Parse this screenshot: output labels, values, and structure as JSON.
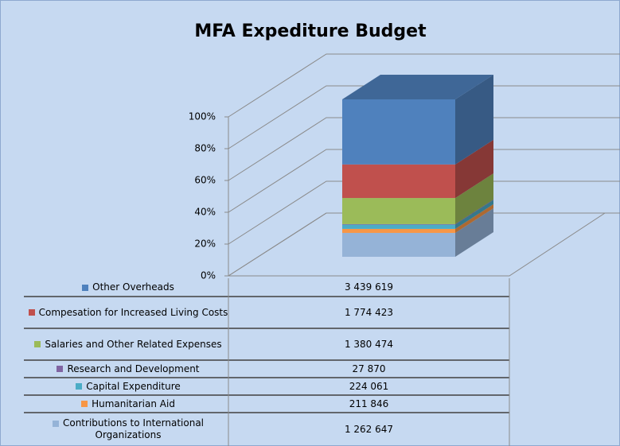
{
  "chart_data": {
    "type": "bar3d_stacked_percent",
    "title": "MFA Expediture Budget",
    "categories": [
      null
    ],
    "ylim": [
      0,
      100
    ],
    "yticks": [
      {
        "value": 0,
        "label": "0%"
      },
      {
        "value": 20,
        "label": "20%"
      },
      {
        "value": 40,
        "label": "40%"
      },
      {
        "value": 60,
        "label": "60%"
      },
      {
        "value": 80,
        "label": "80%"
      },
      {
        "value": 100,
        "label": "100%"
      }
    ],
    "grid": true,
    "series": [
      {
        "name": "Other Overheads",
        "color": "#4f81bd",
        "values": [
          3439619
        ],
        "value_labels": [
          "3 439 619"
        ]
      },
      {
        "name": "Compesation for Increased Living Costs",
        "color": "#c0504d",
        "values": [
          1774423
        ],
        "value_labels": [
          "1 774 423"
        ]
      },
      {
        "name": "Salaries and Other Related Expenses",
        "color": "#9bbb59",
        "values": [
          1380474
        ],
        "value_labels": [
          "1 380 474"
        ]
      },
      {
        "name": "Research and Development",
        "color": "#8064a2",
        "values": [
          27870
        ],
        "value_labels": [
          "27 870"
        ]
      },
      {
        "name": "Capital Expenditure",
        "color": "#4bacc6",
        "values": [
          224061
        ],
        "value_labels": [
          "224 061"
        ]
      },
      {
        "name": "Humanitarian Aid",
        "color": "#f79646",
        "values": [
          211846
        ],
        "value_labels": [
          "211 846"
        ]
      },
      {
        "name": "Contributions to International Organizations",
        "color": "#95b3d7",
        "values": [
          1262647
        ],
        "value_labels": [
          "1 262 647"
        ]
      }
    ]
  }
}
